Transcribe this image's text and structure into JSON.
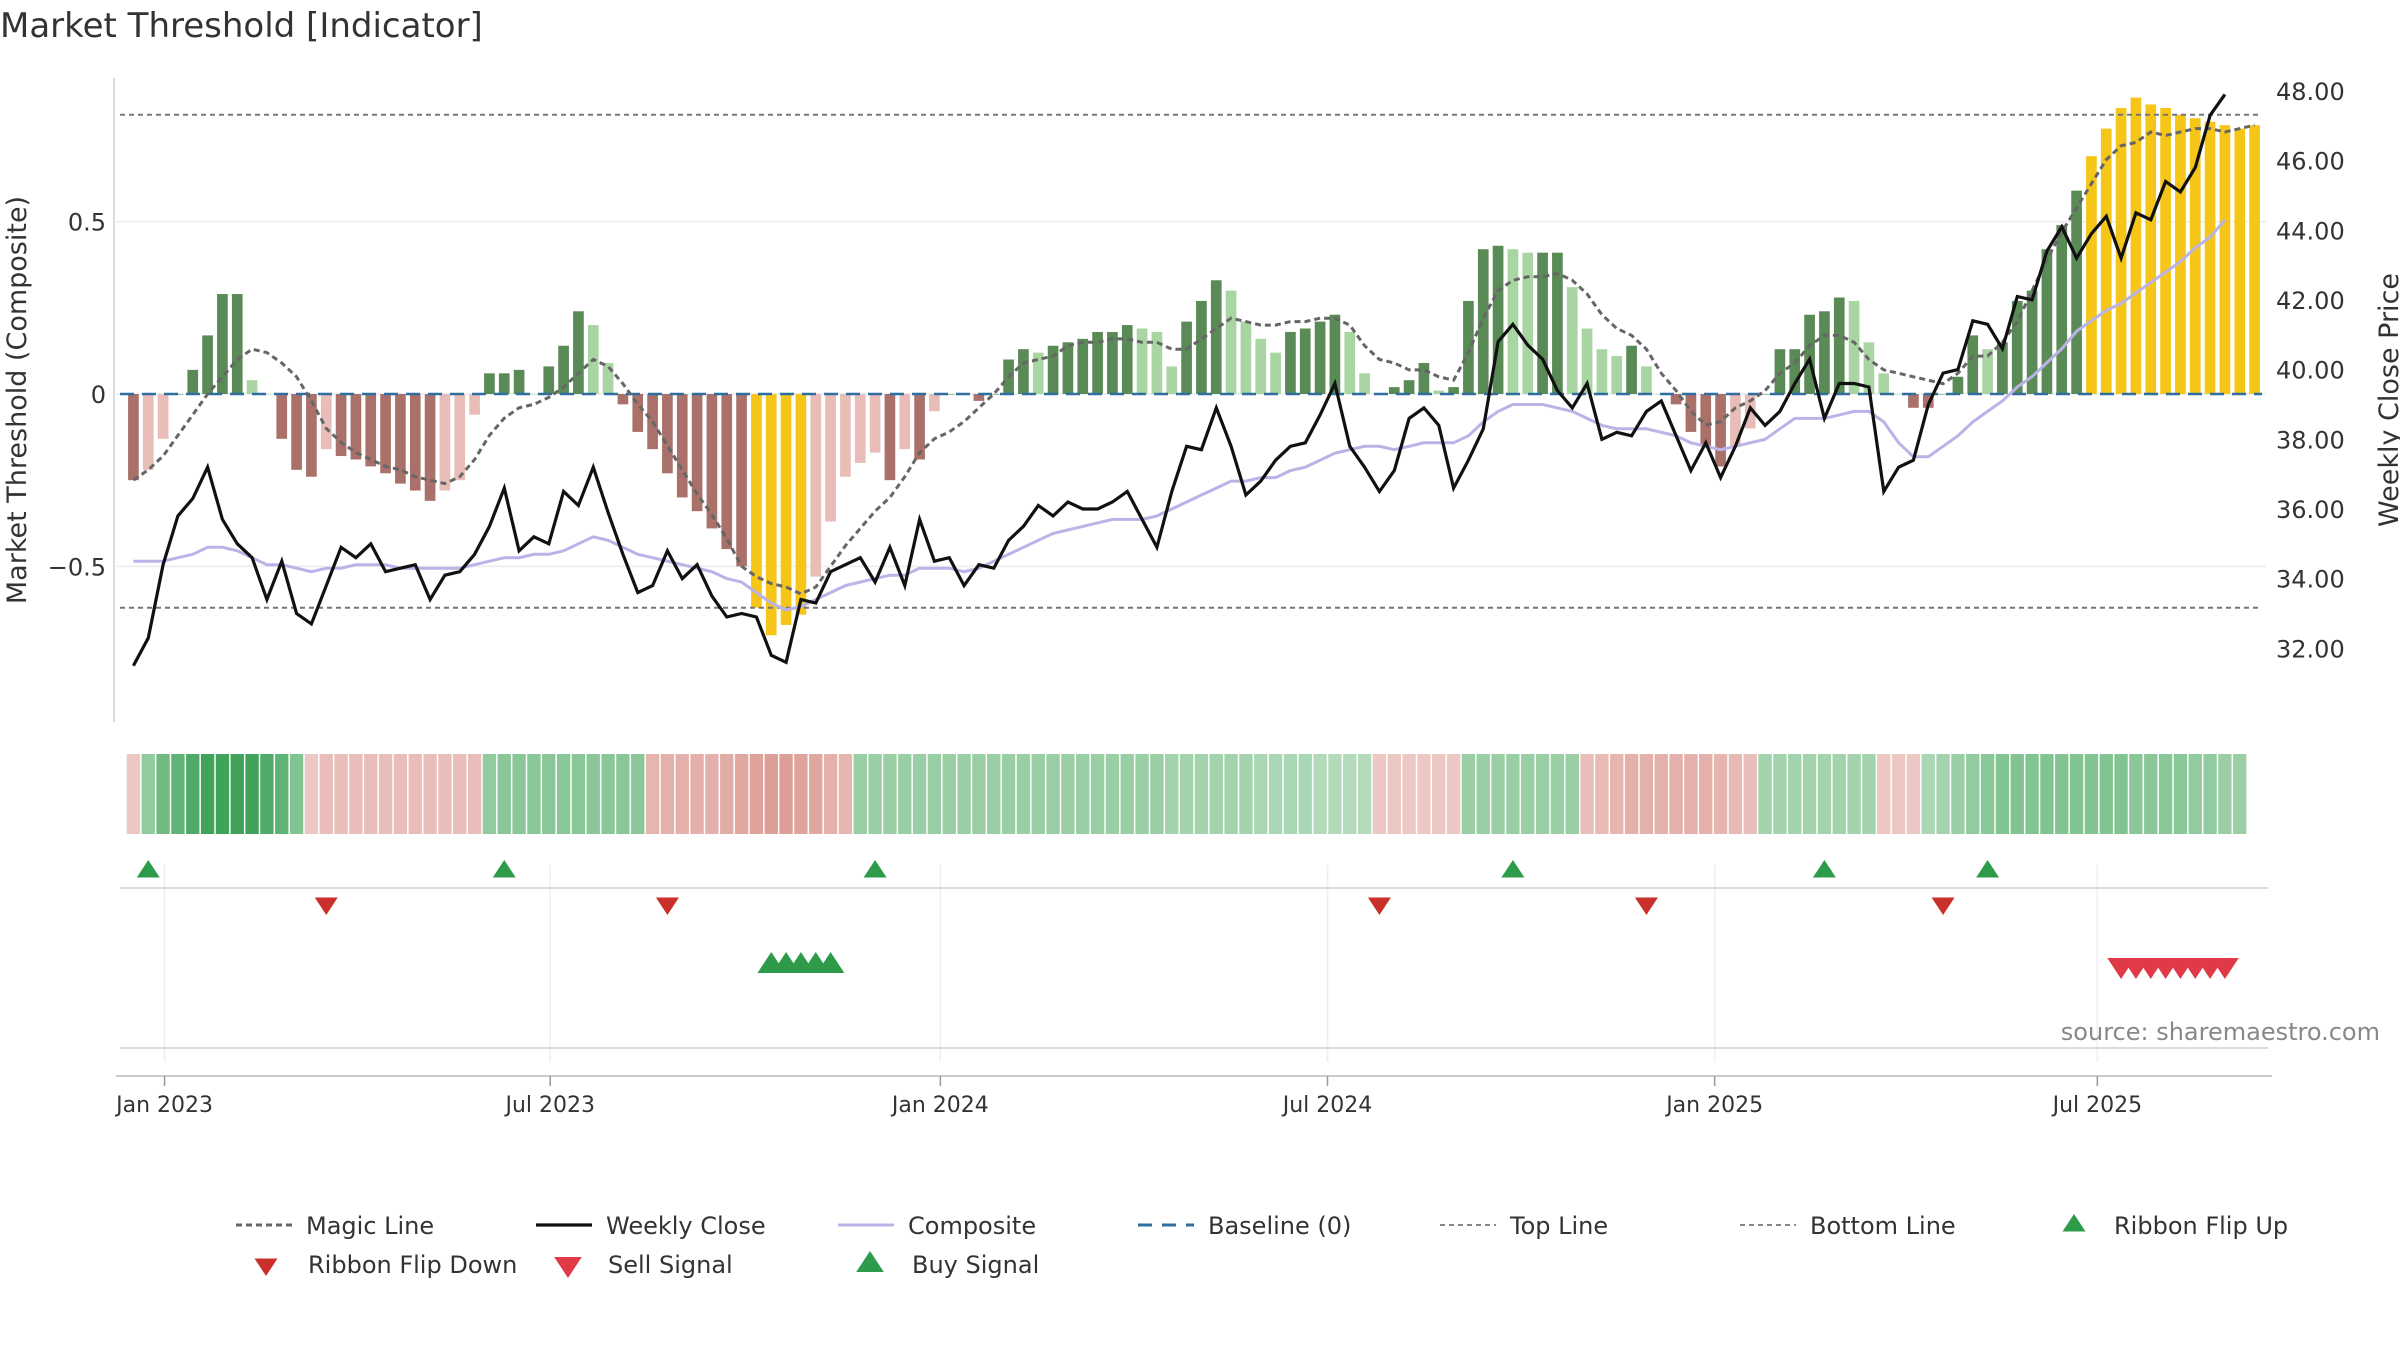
{
  "chart_data": {
    "type": "bar",
    "title": "Market Threshold [Indicator]",
    "ylabel_left": "Market Threshold (Composite)",
    "ylabel_right": "Weekly Close Price",
    "source": "source: sharemaestro.com",
    "left_ylim": [
      -0.94,
      0.94
    ],
    "right_ylim": [
      30.0,
      48.6
    ],
    "left_ticks": [
      0.5,
      0,
      -0.5
    ],
    "left_tick_labels": [
      "0.5",
      "0",
      "−0.5"
    ],
    "right_ticks": [
      48,
      46,
      44,
      42,
      40,
      38,
      36,
      34,
      32
    ],
    "right_tick_labels": [
      "48.00",
      "46.00",
      "44.00",
      "42.00",
      "40.00",
      "38.00",
      "36.00",
      "34.00",
      "32.00"
    ],
    "x_tick_labels": [
      "Jan 2023",
      "Jul 2023",
      "Jan 2024",
      "Jul 2024",
      "Jan 2025",
      "Jul 2025"
    ],
    "x_tick_weeks": [
      2.6,
      28.6,
      54.9,
      81,
      107.1,
      132.9
    ],
    "top_line": 0.81,
    "bottom_line": -0.62,
    "colors": {
      "pos_strong": "#5a8a55",
      "pos_weak": "#a8d5a2",
      "neg_strong": "#a9716a",
      "neg_weak": "#e8bdb7",
      "extreme": "#f5c518",
      "weekly_close": "#111111",
      "composite": "#b9b3e8",
      "magic_line": "#666666",
      "baseline": "#2f6f9f",
      "buy": "#2e9b4a",
      "flip_up": "#2e9b4a",
      "flip_down": "#c9302c",
      "sell": "#e03a48"
    },
    "series": [
      {
        "name": "Indicator",
        "values": [
          -0.25,
          -0.22,
          -0.13,
          0.0,
          0.07,
          0.17,
          0.29,
          0.29,
          0.04,
          0.0,
          -0.13,
          -0.22,
          -0.24,
          -0.16,
          -0.18,
          -0.19,
          -0.21,
          -0.23,
          -0.26,
          -0.28,
          -0.31,
          -0.28,
          -0.25,
          -0.06,
          0.06,
          0.06,
          0.07,
          0.0,
          0.08,
          0.14,
          0.24,
          0.2,
          0.09,
          -0.03,
          -0.11,
          -0.16,
          -0.23,
          -0.3,
          -0.34,
          -0.39,
          -0.45,
          -0.5,
          -0.62,
          -0.7,
          -0.67,
          -0.64,
          -0.53,
          -0.37,
          -0.24,
          -0.2,
          -0.17,
          -0.25,
          -0.16,
          -0.19,
          -0.05,
          0.0,
          0.0,
          -0.02,
          0.0,
          0.1,
          0.13,
          0.12,
          0.14,
          0.15,
          0.16,
          0.18,
          0.18,
          0.2,
          0.19,
          0.18,
          0.08,
          0.21,
          0.27,
          0.33,
          0.3,
          0.21,
          0.16,
          0.12,
          0.18,
          0.19,
          0.21,
          0.23,
          0.18,
          0.06,
          0.0,
          0.02,
          0.04,
          0.09,
          0.01,
          0.02,
          0.27,
          0.42,
          0.43,
          0.42,
          0.41,
          0.41,
          0.41,
          0.31,
          0.19,
          0.13,
          0.11,
          0.14,
          0.08,
          0.0,
          -0.03,
          -0.11,
          -0.15,
          -0.21,
          -0.15,
          -0.1,
          0.0,
          0.13,
          0.13,
          0.23,
          0.24,
          0.28,
          0.27,
          0.15,
          0.06,
          0.0,
          -0.04,
          -0.04,
          0.0,
          0.05,
          0.17,
          0.13,
          0.15,
          0.27,
          0.3,
          0.42,
          0.49,
          0.59,
          0.69,
          0.77,
          0.83,
          0.86,
          0.84,
          0.83,
          0.81,
          0.8,
          0.79,
          0.78,
          0.77,
          0.78
        ]
      },
      {
        "name": "Weekly Close",
        "values": [
          31.5,
          32.3,
          34.4,
          35.8,
          36.3,
          37.2,
          35.7,
          35.0,
          34.6,
          33.4,
          34.5,
          33.0,
          32.7,
          33.8,
          34.9,
          34.6,
          35.0,
          34.2,
          34.3,
          34.4,
          33.4,
          34.1,
          34.2,
          34.7,
          35.5,
          36.6,
          34.8,
          35.2,
          35.0,
          36.5,
          36.1,
          37.2,
          35.9,
          34.7,
          33.6,
          33.8,
          34.8,
          34.0,
          34.4,
          33.5,
          32.9,
          33.0,
          32.9,
          31.8,
          31.6,
          33.4,
          33.3,
          34.2,
          34.4,
          34.6,
          33.9,
          34.9,
          33.8,
          35.7,
          34.5,
          34.6,
          33.8,
          34.4,
          34.3,
          35.1,
          35.5,
          36.1,
          35.8,
          36.2,
          36.0,
          36.0,
          36.2,
          36.5,
          35.7,
          34.9,
          36.5,
          37.8,
          37.7,
          38.9,
          37.8,
          36.4,
          36.8,
          37.4,
          37.8,
          37.9,
          38.7,
          39.6,
          37.8,
          37.2,
          36.5,
          37.1,
          38.6,
          38.9,
          38.4,
          36.6,
          37.4,
          38.3,
          40.8,
          41.3,
          40.7,
          40.3,
          39.4,
          38.9,
          39.6,
          38.0,
          38.2,
          38.1,
          38.8,
          39.1,
          38.1,
          37.1,
          37.9,
          36.9,
          37.8,
          38.9,
          38.4,
          38.8,
          39.6,
          40.3,
          38.6,
          39.6,
          39.6,
          39.5,
          36.5,
          37.2,
          37.4,
          39.0,
          39.9,
          40.0,
          41.4,
          41.3,
          40.6,
          42.1,
          42.0,
          43.4,
          44.1,
          43.2,
          43.9,
          44.4,
          43.2,
          44.5,
          44.3,
          45.4,
          45.1,
          45.8,
          47.3,
          47.9
        ]
      },
      {
        "name": "Composite",
        "values": [
          34.5,
          34.5,
          34.5,
          34.6,
          34.7,
          34.9,
          34.9,
          34.8,
          34.6,
          34.4,
          34.4,
          34.3,
          34.2,
          34.3,
          34.3,
          34.4,
          34.4,
          34.4,
          34.3,
          34.3,
          34.3,
          34.3,
          34.3,
          34.4,
          34.5,
          34.6,
          34.6,
          34.7,
          34.7,
          34.8,
          35.0,
          35.2,
          35.1,
          34.9,
          34.7,
          34.6,
          34.5,
          34.4,
          34.3,
          34.2,
          34.0,
          33.9,
          33.6,
          33.3,
          33.1,
          33.2,
          33.4,
          33.6,
          33.8,
          33.9,
          34.0,
          34.1,
          34.1,
          34.3,
          34.3,
          34.3,
          34.2,
          34.3,
          34.5,
          34.7,
          34.9,
          35.1,
          35.3,
          35.4,
          35.5,
          35.6,
          35.7,
          35.7,
          35.7,
          35.8,
          36.0,
          36.2,
          36.4,
          36.6,
          36.8,
          36.8,
          36.9,
          36.9,
          37.1,
          37.2,
          37.4,
          37.6,
          37.7,
          37.8,
          37.8,
          37.7,
          37.8,
          37.9,
          37.9,
          37.9,
          38.1,
          38.5,
          38.8,
          39.0,
          39.0,
          39.0,
          38.9,
          38.8,
          38.6,
          38.4,
          38.3,
          38.3,
          38.3,
          38.2,
          38.1,
          37.9,
          37.8,
          37.7,
          37.8,
          37.9,
          38.0,
          38.3,
          38.6,
          38.6,
          38.6,
          38.7,
          38.8,
          38.8,
          38.5,
          37.9,
          37.5,
          37.5,
          37.8,
          38.1,
          38.5,
          38.8,
          39.1,
          39.5,
          39.8,
          40.2,
          40.6,
          41.1,
          41.4,
          41.7,
          41.9,
          42.2,
          42.5,
          42.8,
          43.1,
          43.5,
          43.8,
          44.3
        ]
      },
      {
        "name": "Magic Line",
        "values": [
          -0.25,
          -0.22,
          -0.18,
          -0.12,
          -0.06,
          0.0,
          0.05,
          0.1,
          0.13,
          0.12,
          0.09,
          0.05,
          -0.02,
          -0.1,
          -0.14,
          -0.17,
          -0.19,
          -0.21,
          -0.22,
          -0.24,
          -0.25,
          -0.26,
          -0.24,
          -0.19,
          -0.12,
          -0.07,
          -0.04,
          -0.03,
          -0.01,
          0.02,
          0.06,
          0.1,
          0.08,
          0.03,
          -0.03,
          -0.08,
          -0.15,
          -0.22,
          -0.29,
          -0.35,
          -0.42,
          -0.5,
          -0.53,
          -0.55,
          -0.56,
          -0.58,
          -0.56,
          -0.5,
          -0.44,
          -0.39,
          -0.34,
          -0.3,
          -0.24,
          -0.17,
          -0.13,
          -0.11,
          -0.08,
          -0.04,
          0.0,
          0.05,
          0.09,
          0.1,
          0.11,
          0.14,
          0.15,
          0.15,
          0.16,
          0.16,
          0.15,
          0.15,
          0.13,
          0.13,
          0.16,
          0.19,
          0.22,
          0.21,
          0.2,
          0.2,
          0.21,
          0.21,
          0.22,
          0.22,
          0.2,
          0.14,
          0.1,
          0.09,
          0.07,
          0.07,
          0.05,
          0.04,
          0.12,
          0.22,
          0.3,
          0.33,
          0.34,
          0.34,
          0.35,
          0.33,
          0.29,
          0.23,
          0.19,
          0.17,
          0.13,
          0.06,
          0.01,
          -0.05,
          -0.09,
          -0.08,
          -0.04,
          -0.02,
          0.01,
          0.06,
          0.09,
          0.14,
          0.17,
          0.17,
          0.15,
          0.1,
          0.07,
          0.06,
          0.05,
          0.04,
          0.03,
          0.06,
          0.11,
          0.11,
          0.15,
          0.21,
          0.3,
          0.39,
          0.47,
          0.54,
          0.61,
          0.68,
          0.72,
          0.73,
          0.76,
          0.75,
          0.76,
          0.77,
          0.77,
          0.76,
          0.77,
          0.78
        ]
      }
    ],
    "ribbon_intensity": [
      -0.3,
      0.5,
      0.7,
      0.8,
      0.9,
      1.0,
      1.0,
      1.0,
      1.0,
      0.9,
      0.8,
      0.6,
      -0.3,
      -0.4,
      -0.4,
      -0.4,
      -0.4,
      -0.4,
      -0.4,
      -0.4,
      -0.4,
      -0.4,
      -0.4,
      -0.4,
      0.5,
      0.55,
      0.55,
      0.55,
      0.55,
      0.55,
      0.55,
      0.55,
      0.55,
      0.55,
      0.55,
      -0.5,
      -0.55,
      -0.55,
      -0.55,
      -0.55,
      -0.6,
      -0.65,
      -0.7,
      -0.75,
      -0.75,
      -0.7,
      -0.65,
      -0.55,
      -0.5,
      0.45,
      0.45,
      0.45,
      0.45,
      0.45,
      0.45,
      0.45,
      0.45,
      0.45,
      0.45,
      0.45,
      0.45,
      0.45,
      0.45,
      0.45,
      0.45,
      0.45,
      0.45,
      0.45,
      0.45,
      0.45,
      0.4,
      0.4,
      0.4,
      0.4,
      0.4,
      0.4,
      0.35,
      0.35,
      0.35,
      0.35,
      0.3,
      0.3,
      0.3,
      0.3,
      -0.3,
      -0.3,
      -0.3,
      -0.3,
      -0.3,
      -0.3,
      0.45,
      0.45,
      0.45,
      0.45,
      0.45,
      0.45,
      0.45,
      0.45,
      -0.4,
      -0.45,
      -0.5,
      -0.55,
      -0.55,
      -0.55,
      -0.55,
      -0.55,
      -0.55,
      -0.5,
      -0.45,
      -0.4,
      0.4,
      0.4,
      0.4,
      0.4,
      0.4,
      0.4,
      0.4,
      0.4,
      -0.3,
      -0.3,
      -0.3,
      0.35,
      0.4,
      0.45,
      0.5,
      0.55,
      0.6,
      0.6,
      0.6,
      0.6,
      0.6,
      0.6,
      0.6,
      0.6,
      0.6,
      0.55,
      0.55,
      0.55,
      0.55,
      0.5,
      0.5,
      0.45,
      0.45
    ],
    "ribbon_flip_up_weeks": [
      1,
      25,
      50,
      93,
      114,
      125
    ],
    "ribbon_flip_down_weeks": [
      13,
      36,
      84,
      102,
      122
    ],
    "buy_signal_weeks": [
      43,
      44,
      45,
      46,
      47
    ],
    "sell_signal_weeks": [
      134,
      135,
      136,
      137,
      138,
      139,
      140,
      141
    ],
    "legend": [
      {
        "key": "magic",
        "label": "Magic Line"
      },
      {
        "key": "close",
        "label": "Weekly Close"
      },
      {
        "key": "composite",
        "label": "Composite"
      },
      {
        "key": "baseline",
        "label": "Baseline (0)"
      },
      {
        "key": "top",
        "label": "Top Line"
      },
      {
        "key": "bottom",
        "label": "Bottom Line"
      },
      {
        "key": "flipup",
        "label": "Ribbon Flip Up"
      },
      {
        "key": "flipdown",
        "label": "Ribbon Flip Down"
      },
      {
        "key": "sell",
        "label": "Sell Signal"
      },
      {
        "key": "buy",
        "label": "Buy Signal"
      }
    ]
  }
}
